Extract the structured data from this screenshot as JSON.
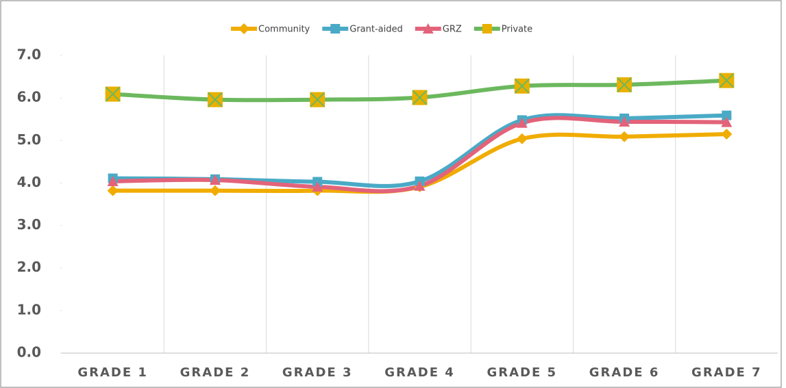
{
  "chart_data": {
    "type": "line",
    "categories": [
      "GRADE 1",
      "GRADE 2",
      "GRADE 3",
      "GRADE 4",
      "GRADE 5",
      "GRADE 6",
      "GRADE 7"
    ],
    "series": [
      {
        "name": "Community",
        "color": "#f0ac00",
        "marker": "diamond",
        "marker_color": "#f0ac00",
        "values": [
          3.82,
          3.82,
          3.82,
          3.91,
          5.04,
          5.09,
          5.15
        ]
      },
      {
        "name": "Grant-aided",
        "color": "#4aaac6",
        "marker": "square",
        "marker_color": "#4aaac6",
        "values": [
          4.11,
          4.09,
          4.03,
          4.04,
          5.48,
          5.52,
          5.59
        ]
      },
      {
        "name": "GRZ",
        "color": "#e2637a",
        "marker": "triangle",
        "marker_color": "#e2637a",
        "values": [
          4.04,
          4.07,
          3.91,
          3.93,
          5.41,
          5.44,
          5.43
        ]
      },
      {
        "name": "Private",
        "color": "#6cb85e",
        "marker": "xsquare",
        "marker_color": "#e8b000",
        "values": [
          6.09,
          5.96,
          5.96,
          6.01,
          6.28,
          6.31,
          6.41
        ]
      }
    ],
    "ylim": [
      0,
      7
    ],
    "yticks": [
      {
        "value": 0,
        "label": "0.0"
      },
      {
        "value": 1,
        "label": "1.0"
      },
      {
        "value": 2,
        "label": "2.0"
      },
      {
        "value": 3,
        "label": "3.0"
      },
      {
        "value": 4,
        "label": "4.0"
      },
      {
        "value": 5,
        "label": "5.0"
      },
      {
        "value": 6,
        "label": "6.0"
      },
      {
        "value": 7,
        "label": "7.0"
      }
    ],
    "smooth": true,
    "legend": "top"
  }
}
